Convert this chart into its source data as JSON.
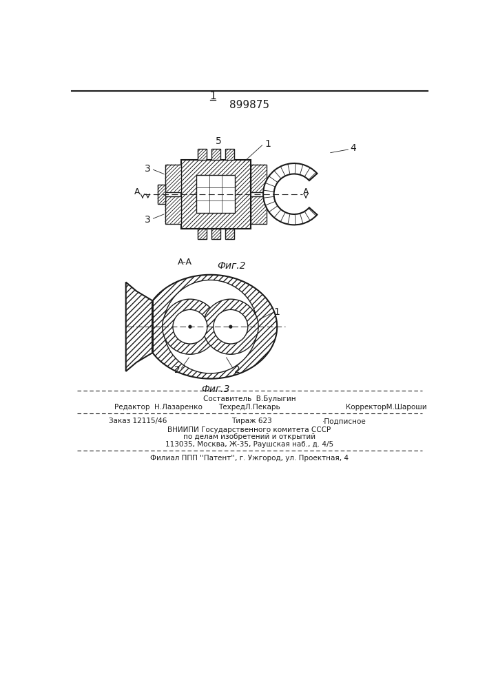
{
  "patent_number": "899875",
  "fig1_label": "1",
  "fig2_label": "Фиг.2",
  "fig3_label": "Фиг.3",
  "section_label": "A-A",
  "footer_line1": "Составитель  В.Булыгин",
  "footer_line2_left": "Редактор  Н.Лазаренко",
  "footer_line2_mid": "ТехредЛ.Пекарь",
  "footer_line2_right": "КорректорМ.Шароши",
  "footer_line3_left": "Заказ 12115/46",
  "footer_line3_mid": "Тираж 623",
  "footer_line3_right": "·Подписное",
  "footer_line4": "ВНИИПИ Государственного комитета СССР",
  "footer_line5": "по делам изобретений и открытий",
  "footer_line6": "113035, Москва, Ж-35, Раушская наб., д. 4/5",
  "footer_line7": "Филиал ППП ''Патент'', г. Ужгород, ул. Проектная, 4",
  "bg_color": "#ffffff",
  "line_color": "#1a1a1a"
}
